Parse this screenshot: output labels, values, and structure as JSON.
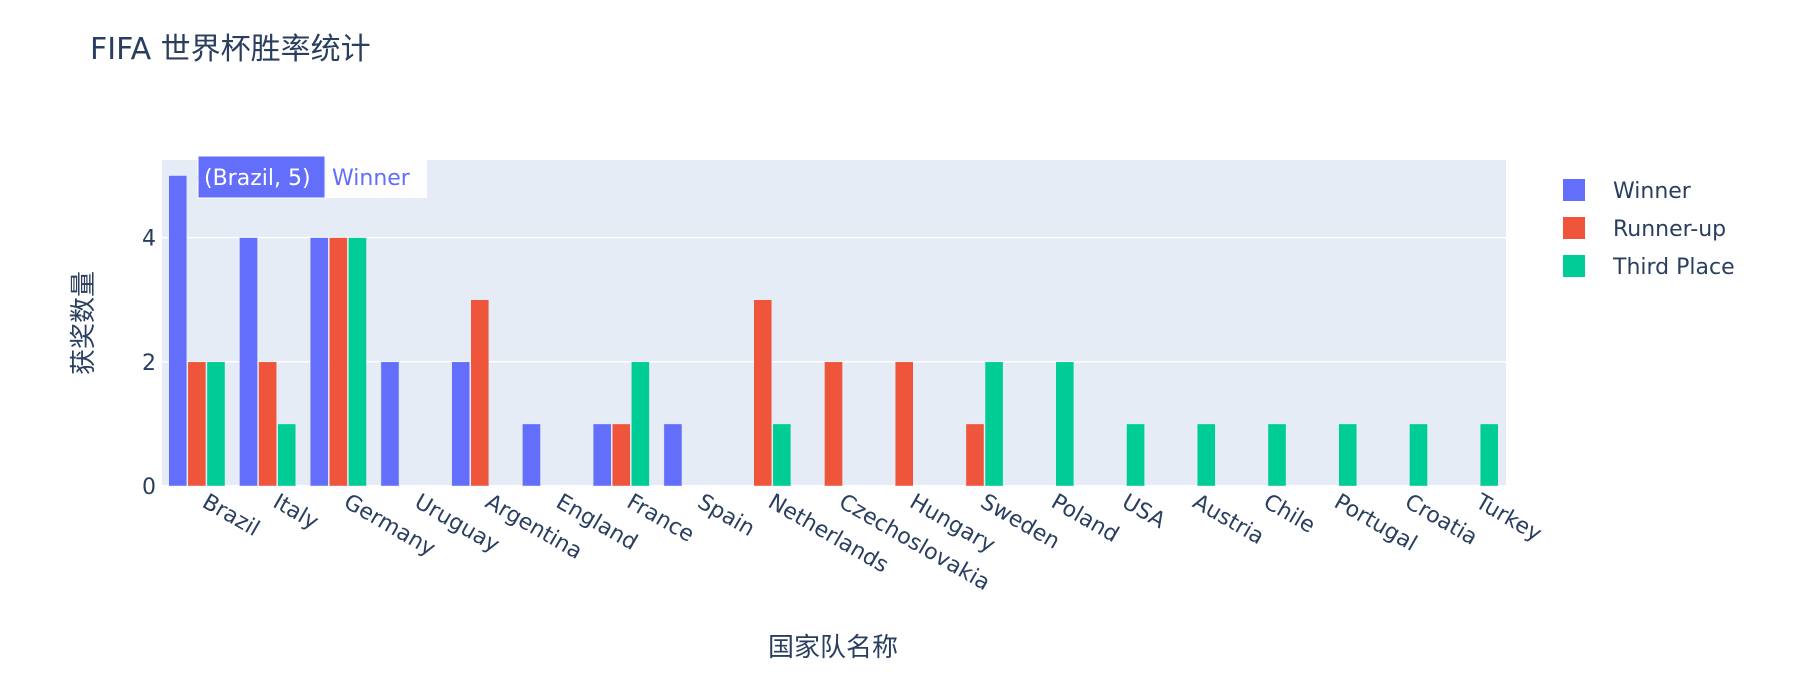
{
  "chart_data": {
    "type": "bar",
    "title": "FIFA 世界杯胜率统计",
    "xlabel": "国家队名称",
    "ylabel": "获奖数量",
    "ylim": [
      0,
      5.25
    ],
    "yticks": [
      0,
      2,
      4
    ],
    "grid": true,
    "legend_position": "right",
    "categories": [
      "Brazil",
      "Italy",
      "Germany",
      "Uruguay",
      "Argentina",
      "England",
      "France",
      "Spain",
      "Netherlands",
      "Czechoslovakia",
      "Hungary",
      "Sweden",
      "Poland",
      "USA",
      "Austria",
      "Chile",
      "Portugal",
      "Croatia",
      "Turkey"
    ],
    "series": [
      {
        "name": "Winner",
        "color": "#636efa",
        "values": [
          5,
          4,
          4,
          2,
          2,
          1,
          1,
          1,
          0,
          0,
          0,
          0,
          0,
          0,
          0,
          0,
          0,
          0,
          0
        ]
      },
      {
        "name": "Runner-up",
        "color": "#ef553b",
        "values": [
          2,
          2,
          4,
          0,
          3,
          0,
          1,
          0,
          3,
          2,
          2,
          1,
          0,
          0,
          0,
          0,
          0,
          0,
          0
        ]
      },
      {
        "name": "Third Place",
        "color": "#00cc96",
        "values": [
          2,
          1,
          4,
          0,
          0,
          0,
          2,
          0,
          1,
          0,
          0,
          2,
          2,
          1,
          1,
          1,
          1,
          1,
          1
        ]
      }
    ],
    "hover": {
      "label": "(Brazil, 5)",
      "series": "Winner"
    }
  },
  "colors": {
    "plot_bg": "#e5ecf6",
    "grid": "#ffffff",
    "text": "#2a3f5f"
  }
}
